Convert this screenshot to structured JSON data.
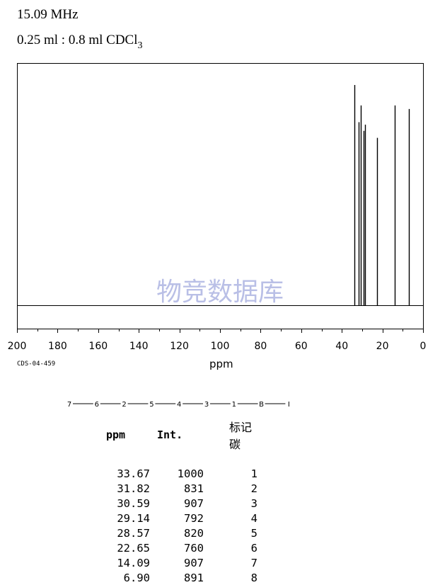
{
  "header": {
    "frequency": "15.09 MHz",
    "solvent_prefix": "0.25 ml : 0.8 ml CDCl",
    "solvent_subscript": "3"
  },
  "catalog_id": "CDS-04-459",
  "chain": [
    "7",
    "6",
    "2",
    "5",
    "4",
    "3",
    "1",
    "B",
    "I"
  ],
  "table": {
    "headers": {
      "ppm": "ppm",
      "int": "Int.",
      "mark": "标记碳"
    },
    "rows": [
      {
        "ppm": "33.67",
        "int": "1000",
        "mark": "1"
      },
      {
        "ppm": "31.82",
        "int": "831",
        "mark": "2"
      },
      {
        "ppm": "30.59",
        "int": "907",
        "mark": "3"
      },
      {
        "ppm": "29.14",
        "int": "792",
        "mark": "4"
      },
      {
        "ppm": "28.57",
        "int": "820",
        "mark": "5"
      },
      {
        "ppm": "22.65",
        "int": "760",
        "mark": "6"
      },
      {
        "ppm": "14.09",
        "int": "907",
        "mark": "7"
      },
      {
        "ppm": "6.90",
        "int": "891",
        "mark": "8"
      }
    ]
  },
  "chart_data": {
    "type": "line",
    "xlabel": "ppm",
    "ylabel": "",
    "xlim": [
      200,
      0
    ],
    "x_reversed": true,
    "x_ticks": [
      200,
      180,
      160,
      140,
      120,
      100,
      80,
      60,
      40,
      20,
      0
    ],
    "watermark": "物竞数据库",
    "peaks": [
      {
        "ppm": 33.67,
        "intensity": 1000
      },
      {
        "ppm": 31.82,
        "intensity": 831
      },
      {
        "ppm": 30.59,
        "intensity": 907
      },
      {
        "ppm": 29.14,
        "intensity": 792
      },
      {
        "ppm": 28.57,
        "intensity": 820
      },
      {
        "ppm": 22.65,
        "intensity": 760
      },
      {
        "ppm": 14.09,
        "intensity": 907
      },
      {
        "ppm": 6.9,
        "intensity": 891
      }
    ],
    "colors": {
      "trace": "#000000",
      "watermark": "#b9bfe6"
    }
  }
}
